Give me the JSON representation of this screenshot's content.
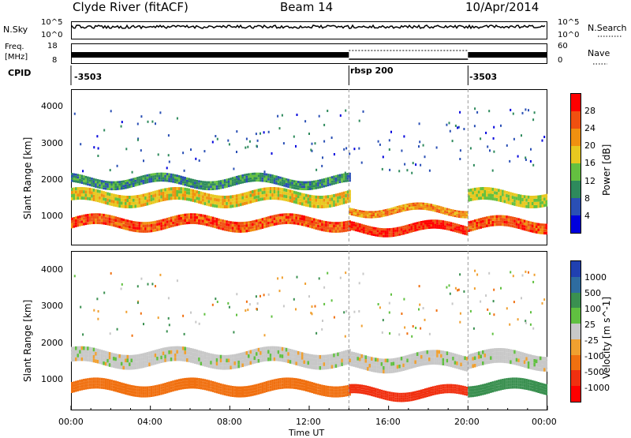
{
  "header": {
    "station": "Clyde River (fitACF)",
    "beam": "Beam 14",
    "date": "10/Apr/2014"
  },
  "noise_panel": {
    "left_label": "N.Sky",
    "left_ticks": [
      "10^5",
      "10^0"
    ],
    "right_ticks": [
      "10^5",
      "10^0"
    ],
    "right_label": "N.Search"
  },
  "freq_panel": {
    "left_label_top": "Freq.",
    "left_label_unit": "[MHz]",
    "left_ticks": [
      "18",
      "8"
    ],
    "right_ticks": [
      "60",
      "0"
    ],
    "right_label": "Nave"
  },
  "cpid_panel": {
    "label": "CPID",
    "segments": [
      {
        "name": "-3503",
        "start_h": 0,
        "end_h": 14
      },
      {
        "name": "rbsp 200",
        "start_h": 14,
        "end_h": 20
      },
      {
        "name": "-3503",
        "start_h": 20,
        "end_h": 24
      }
    ]
  },
  "time_axis": {
    "label": "Time UT",
    "ticks": [
      "00:00",
      "04:00",
      "08:00",
      "12:00",
      "16:00",
      "20:00",
      "00:00"
    ]
  },
  "power_panel": {
    "ylabel": "Slant Range [km]",
    "yticks": [
      "4000",
      "3000",
      "2000",
      "1000"
    ],
    "colorbar_label": "Power [dB]",
    "colorbar_ticks": [
      "28",
      "24",
      "20",
      "16",
      "12",
      "8",
      "4"
    ],
    "colors": [
      "#0000dd",
      "#2a4fb5",
      "#2e8a5c",
      "#64c040",
      "#e8c820",
      "#f09010",
      "#f05010",
      "#ff0000"
    ]
  },
  "velocity_panel": {
    "ylabel": "Slant Range [km]",
    "yticks": [
      "4000",
      "3000",
      "2000",
      "1000"
    ],
    "colorbar_label": "Velocity [m s^-1]",
    "colorbar_ticks": [
      "1000",
      "500",
      "100",
      "25",
      "-25",
      "-100",
      "-500",
      "-1000"
    ],
    "colors": [
      "#2040b0",
      "#2e6ca0",
      "#3a9050",
      "#60c040",
      "#c8c8c8",
      "#f0a030",
      "#f07010",
      "#f03010",
      "#ff0000"
    ]
  },
  "chart_data": {
    "type": "heatmap",
    "x_range_hours": [
      0,
      24
    ],
    "y_range_km": [
      180,
      4500
    ],
    "power_bands": [
      {
        "t_start": 0,
        "t_end": 14,
        "center_km": 800,
        "width_km": 300,
        "value_db": 26
      },
      {
        "t_start": 0,
        "t_end": 14,
        "center_km": 1500,
        "width_km": 350,
        "value_db": 18
      },
      {
        "t_start": 0,
        "t_end": 14,
        "center_km": 1950,
        "width_km": 250,
        "value_db": 10
      },
      {
        "t_start": 14,
        "t_end": 20,
        "center_km": 650,
        "width_km": 250,
        "value_db": 28
      },
      {
        "t_start": 14,
        "t_end": 20,
        "center_km": 1150,
        "width_km": 200,
        "value_db": 22
      },
      {
        "t_start": 20,
        "t_end": 24,
        "center_km": 750,
        "width_km": 300,
        "value_db": 26
      },
      {
        "t_start": 20,
        "t_end": 24,
        "center_km": 1500,
        "width_km": 350,
        "value_db": 16
      }
    ],
    "velocity_bands": [
      {
        "t_start": 0,
        "t_end": 14,
        "center_km": 800,
        "width_km": 300,
        "value_ms": -100
      },
      {
        "t_start": 0,
        "t_end": 14,
        "center_km": 1600,
        "width_km": 400,
        "value_ms": 0
      },
      {
        "t_start": 14,
        "t_end": 20,
        "center_km": 650,
        "width_km": 250,
        "value_ms": -500
      },
      {
        "t_start": 14,
        "t_end": 20,
        "center_km": 1500,
        "width_km": 400,
        "value_ms": 0
      },
      {
        "t_start": 20,
        "t_end": 24,
        "center_km": 800,
        "width_km": 300,
        "value_ms": 100
      },
      {
        "t_start": 20,
        "t_end": 24,
        "center_km": 1550,
        "width_km": 400,
        "value_ms": 0
      }
    ]
  }
}
